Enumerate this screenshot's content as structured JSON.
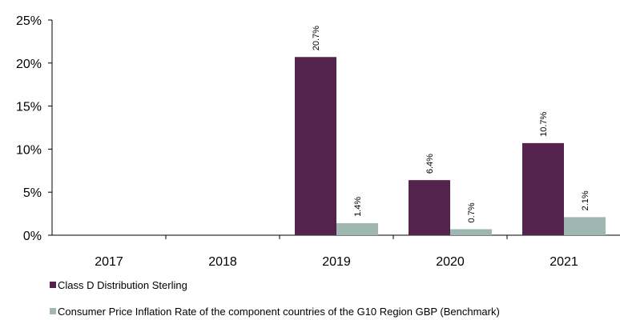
{
  "chart_data": {
    "type": "bar",
    "categories": [
      "2017",
      "2018",
      "2019",
      "2020",
      "2021"
    ],
    "series": [
      {
        "name": "Class D Distribution Sterling",
        "color": "#54234d",
        "values": [
          null,
          null,
          20.7,
          6.4,
          10.7
        ],
        "labels": [
          "",
          "",
          "20.7%",
          "6.4%",
          "10.7%"
        ]
      },
      {
        "name": "Consumer Price Inflation Rate of the component countries of the G10 Region GBP (Benchmark)",
        "color": "#9fb7b1",
        "values": [
          null,
          null,
          1.4,
          0.7,
          2.1
        ],
        "labels": [
          "",
          "",
          "1.4%",
          "0.7%",
          "2.1%"
        ]
      }
    ],
    "y_ticks": [
      "0%",
      "5%",
      "10%",
      "15%",
      "20%",
      "25%"
    ],
    "y_tick_values": [
      0,
      5,
      10,
      15,
      20,
      25
    ],
    "ylim": [
      0,
      25
    ],
    "grid": false,
    "legend_position": "bottom-left"
  }
}
